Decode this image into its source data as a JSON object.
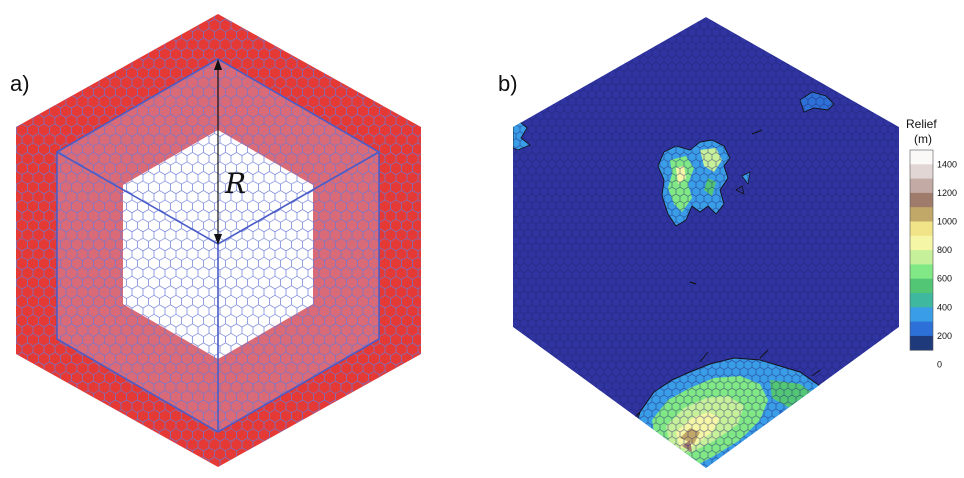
{
  "panel_a": {
    "label": "a)",
    "radius_label": "R",
    "colors": {
      "outer_ring": "#e53935",
      "middle_ring": "#d96a78",
      "inner_region": "#ffffff",
      "cell_outline": "#6a79d6",
      "boundary_line": "#4a5cc7",
      "arrow": "#111111"
    }
  },
  "panel_b": {
    "label": "b)",
    "colorbar": {
      "title_line1": "Relief",
      "title_line2": "(m)",
      "ticks": [
        "1400",
        "1200",
        "1000",
        "800",
        "600",
        "400",
        "200",
        "0"
      ],
      "colors": [
        "#fbf8f8",
        "#e2d6d5",
        "#c3aaa5",
        "#9e7b6a",
        "#c2a868",
        "#f1e488",
        "#f6f7a6",
        "#c7f09a",
        "#80e884",
        "#52c675",
        "#3fb8a0",
        "#3a9de8",
        "#2d71d8",
        "#1f3a7a"
      ]
    },
    "colors": {
      "ocean": "#2f34a0",
      "coastline": "#111111"
    }
  }
}
